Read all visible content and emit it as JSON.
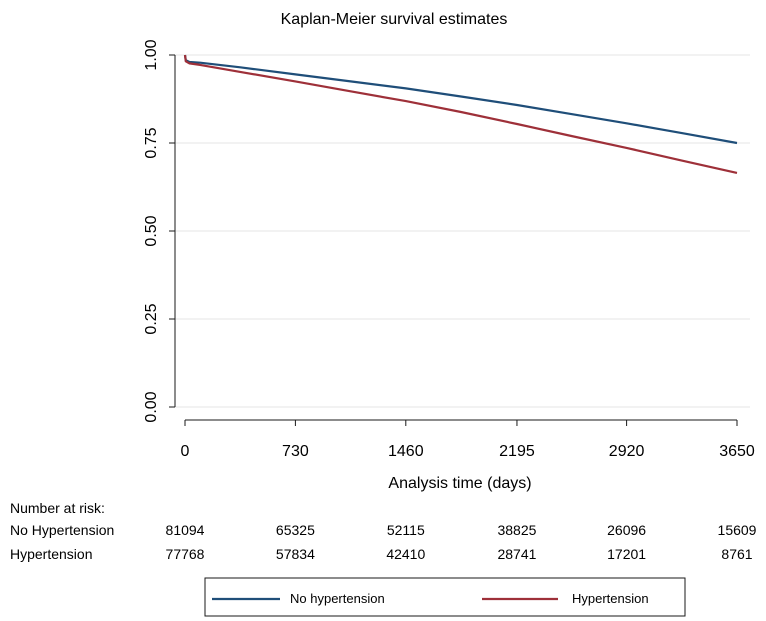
{
  "chart_data": {
    "type": "line",
    "title": "Kaplan-Meier survival estimates",
    "xlabel": "Analysis time (days)",
    "ylabel": "",
    "xlim": [
      0,
      3650
    ],
    "ylim": [
      0,
      1
    ],
    "x_ticks": [
      "0",
      "730",
      "1460",
      "2195",
      "2920",
      "3650"
    ],
    "x_tick_values": [
      0,
      730,
      1460,
      2195,
      2920,
      3650
    ],
    "y_ticks": [
      "0.00",
      "0.25",
      "0.50",
      "0.75",
      "1.00"
    ],
    "y_tick_values": [
      0,
      0.25,
      0.5,
      0.75,
      1.0
    ],
    "grid": "horizontal",
    "series": [
      {
        "name": "No hypertension",
        "color": "#1f4e79",
        "x": [
          0,
          5,
          30,
          100,
          365,
          730,
          1095,
          1460,
          1825,
          2195,
          2555,
          2920,
          3285,
          3650
        ],
        "values": [
          1.0,
          0.985,
          0.98,
          0.978,
          0.965,
          0.945,
          0.925,
          0.905,
          0.882,
          0.858,
          0.832,
          0.806,
          0.778,
          0.75
        ]
      },
      {
        "name": "Hypertension",
        "color": "#9e3039",
        "x": [
          0,
          5,
          30,
          100,
          365,
          730,
          1095,
          1460,
          1825,
          2195,
          2555,
          2920,
          3285,
          3650
        ],
        "values": [
          1.0,
          0.982,
          0.976,
          0.972,
          0.952,
          0.925,
          0.897,
          0.869,
          0.838,
          0.804,
          0.77,
          0.736,
          0.7,
          0.665
        ]
      }
    ]
  },
  "risk_table": {
    "heading": "Number at risk:",
    "rows": [
      {
        "label": "No Hypertension",
        "values": [
          "81094",
          "65325",
          "52115",
          "38825",
          "26096",
          "15609"
        ]
      },
      {
        "label": "Hypertension",
        "values": [
          "77768",
          "57834",
          "42410",
          "28741",
          "17201",
          "8761"
        ]
      }
    ]
  },
  "legend": {
    "items": [
      {
        "label": "No hypertension",
        "color": "#1f4e79"
      },
      {
        "label": "Hypertension",
        "color": "#9e3039"
      }
    ]
  }
}
